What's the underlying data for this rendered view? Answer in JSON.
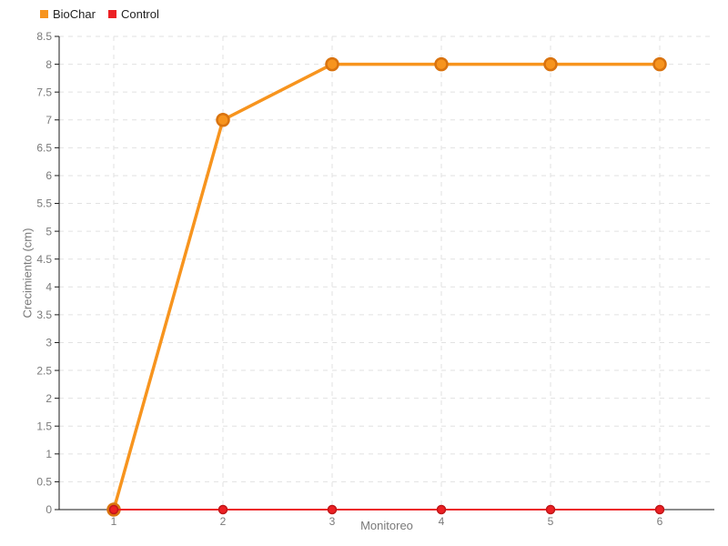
{
  "chart_data": {
    "type": "line",
    "title": "",
    "xlabel": "Monitoreo",
    "ylabel": "Crecimiento (cm)",
    "categories": [
      1,
      2,
      3,
      4,
      5,
      6
    ],
    "xtick_labels": [
      "1",
      "2",
      "3",
      "4",
      "5",
      "6"
    ],
    "ytick_labels": [
      "0",
      "0.5",
      "1",
      "1.5",
      "2",
      "2.5",
      "3",
      "3.5",
      "4",
      "4.5",
      "5",
      "5.5",
      "6",
      "6.5",
      "7",
      "7.5",
      "8",
      "8.5"
    ],
    "ylim": [
      0,
      8.5
    ],
    "ytick_step": 0.5,
    "grid": true,
    "grid_color": "#e2e2e2",
    "axis_color": "#1a1a1a",
    "tick_label_color": "#7a7a7a",
    "legend_position": "top-left",
    "background_color": "#ffffff",
    "series": [
      {
        "name": "BioChar",
        "color": "#f7941e",
        "marker_stroke": "#d9730f",
        "values": [
          0,
          7,
          8,
          8,
          8,
          8
        ]
      },
      {
        "name": "Control",
        "color": "#ec2024",
        "marker_stroke": "#c01618",
        "values": [
          0,
          0,
          0,
          0,
          0,
          0
        ]
      }
    ]
  }
}
